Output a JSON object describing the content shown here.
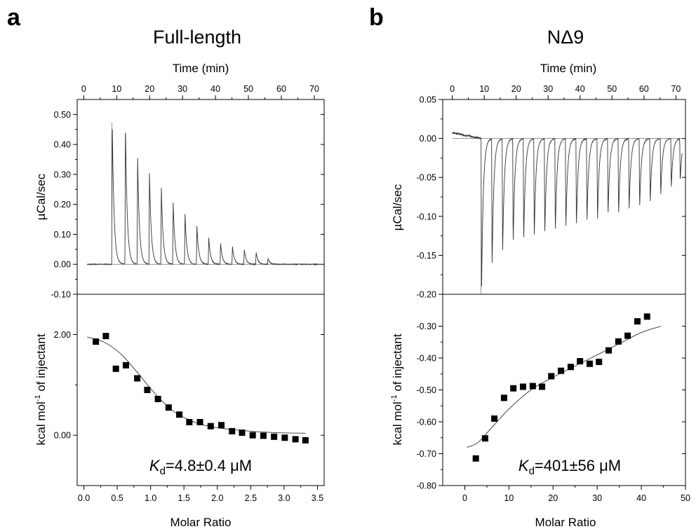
{
  "chart_data": [
    {
      "panel": "a",
      "type": "line",
      "title": "Full-length",
      "xlabel": "Time (min)",
      "ylabel": "µCal/sec",
      "xticks": [
        "0",
        "10",
        "20",
        "30",
        "40",
        "50",
        "60",
        "70"
      ],
      "yticks": [
        "0.50",
        "0.40",
        "0.30",
        "0.20",
        "0.10",
        "0.00",
        "-0.10"
      ],
      "xlim": [
        -2,
        73
      ],
      "ylim": [
        -0.1,
        0.55
      ],
      "baseline_start": 1,
      "baseline_end": 72,
      "injection_times": [
        8.5,
        12.5,
        16.2,
        19.8,
        23.4,
        27.0,
        30.6,
        34.2,
        37.8,
        41.4,
        45.0,
        48.6,
        52.2,
        55.8
      ],
      "peak_heights": [
        0.475,
        0.47,
        0.36,
        0.31,
        0.26,
        0.21,
        0.17,
        0.13,
        0.09,
        0.07,
        0.06,
        0.05,
        0.04,
        0.02
      ]
    },
    {
      "panel": "a",
      "type": "scatter",
      "xlabel": "Molar Ratio",
      "ylabel": "kcal mol-1 of injectant",
      "ylabel_main": "kcal mol",
      "ylabel_sup": "-1",
      "ylabel_rest": " of injectant",
      "xticks": [
        "0.0",
        "0.5",
        "1.0",
        "1.5",
        "2.0",
        "2.5",
        "3.0",
        "3.5"
      ],
      "yticks": [
        "2.00",
        "0.00"
      ],
      "xlim": [
        -0.1,
        3.6
      ],
      "ylim": [
        -1.0,
        2.8
      ],
      "points": [
        {
          "x": 0.18,
          "y": 1.86
        },
        {
          "x": 0.33,
          "y": 1.97
        },
        {
          "x": 0.48,
          "y": 1.32
        },
        {
          "x": 0.63,
          "y": 1.39
        },
        {
          "x": 0.8,
          "y": 1.13
        },
        {
          "x": 0.95,
          "y": 0.9
        },
        {
          "x": 1.11,
          "y": 0.72
        },
        {
          "x": 1.27,
          "y": 0.55
        },
        {
          "x": 1.43,
          "y": 0.41
        },
        {
          "x": 1.58,
          "y": 0.26
        },
        {
          "x": 1.74,
          "y": 0.26
        },
        {
          "x": 1.9,
          "y": 0.18
        },
        {
          "x": 2.06,
          "y": 0.2
        },
        {
          "x": 2.22,
          "y": 0.08
        },
        {
          "x": 2.37,
          "y": 0.05
        },
        {
          "x": 2.53,
          "y": 0.0
        },
        {
          "x": 2.69,
          "y": -0.01
        },
        {
          "x": 2.85,
          "y": -0.03
        },
        {
          "x": 3.01,
          "y": -0.05
        },
        {
          "x": 3.17,
          "y": -0.08
        },
        {
          "x": 3.32,
          "y": -0.1
        }
      ],
      "fit": [
        {
          "x": 0.05,
          "y": 1.95
        },
        {
          "x": 0.3,
          "y": 1.85
        },
        {
          "x": 0.55,
          "y": 1.62
        },
        {
          "x": 0.8,
          "y": 1.25
        },
        {
          "x": 1.05,
          "y": 0.85
        },
        {
          "x": 1.3,
          "y": 0.52
        },
        {
          "x": 1.55,
          "y": 0.32
        },
        {
          "x": 1.8,
          "y": 0.2
        },
        {
          "x": 2.1,
          "y": 0.13
        },
        {
          "x": 2.5,
          "y": 0.08
        },
        {
          "x": 2.9,
          "y": 0.05
        },
        {
          "x": 3.32,
          "y": 0.04
        }
      ],
      "kd_symbol": "K",
      "kd_subscript": "d",
      "kd_value": "=4.8±0.4 μM"
    },
    {
      "panel": "b",
      "type": "line",
      "title": "NΔ9",
      "xlabel": "Time (min)",
      "ylabel": "µCal/sec",
      "xticks": [
        "0",
        "10",
        "20",
        "30",
        "40",
        "50",
        "60",
        "70"
      ],
      "yticks": [
        "0.05",
        "0.00",
        "-0.05",
        "-0.10",
        "-0.15",
        "-0.20"
      ],
      "xlim": [
        -3,
        73
      ],
      "ylim": [
        -0.2,
        0.05
      ],
      "baseline_start": 0,
      "baseline_end": 72,
      "injection_times": [
        9.0,
        12.3,
        15.6,
        18.9,
        22.2,
        25.5,
        28.8,
        32.1,
        35.4,
        38.7,
        42.0,
        45.3,
        48.6,
        51.9,
        55.2,
        58.5,
        61.8,
        65.1,
        68.4,
        71.2
      ],
      "peak_heights": [
        -0.2,
        -0.168,
        -0.15,
        -0.137,
        -0.133,
        -0.13,
        -0.125,
        -0.122,
        -0.118,
        -0.115,
        -0.11,
        -0.108,
        -0.1,
        -0.1,
        -0.095,
        -0.09,
        -0.085,
        -0.075,
        -0.065,
        -0.055
      ]
    },
    {
      "panel": "b",
      "type": "scatter",
      "xlabel": "Molar Ratio",
      "ylabel": "kcal mol-1 of injectant",
      "ylabel_main": "kcal mol",
      "ylabel_sup": "-1",
      "ylabel_rest": " of injectant",
      "xticks": [
        "0",
        "10",
        "20",
        "30",
        "40",
        "50"
      ],
      "yticks": [
        "-0.30",
        "-0.40",
        "-0.50",
        "-0.60",
        "-0.70",
        "-0.80"
      ],
      "xlim": [
        -5,
        50
      ],
      "ylim": [
        -0.8,
        -0.2
      ],
      "points": [
        {
          "x": 2.5,
          "y": -0.715
        },
        {
          "x": 4.6,
          "y": -0.652
        },
        {
          "x": 6.7,
          "y": -0.59
        },
        {
          "x": 8.9,
          "y": -0.525
        },
        {
          "x": 11.0,
          "y": -0.495
        },
        {
          "x": 13.2,
          "y": -0.49
        },
        {
          "x": 15.4,
          "y": -0.488
        },
        {
          "x": 17.5,
          "y": -0.49
        },
        {
          "x": 19.6,
          "y": -0.457
        },
        {
          "x": 21.8,
          "y": -0.44
        },
        {
          "x": 24.0,
          "y": -0.428
        },
        {
          "x": 26.1,
          "y": -0.41
        },
        {
          "x": 28.3,
          "y": -0.418
        },
        {
          "x": 30.4,
          "y": -0.412
        },
        {
          "x": 32.6,
          "y": -0.376
        },
        {
          "x": 34.8,
          "y": -0.348
        },
        {
          "x": 36.9,
          "y": -0.33
        },
        {
          "x": 39.1,
          "y": -0.285
        },
        {
          "x": 41.3,
          "y": -0.27
        }
      ],
      "fit": [
        {
          "x": 0.5,
          "y": -0.68
        },
        {
          "x": 3,
          "y": -0.665
        },
        {
          "x": 6,
          "y": -0.62
        },
        {
          "x": 10,
          "y": -0.56
        },
        {
          "x": 15,
          "y": -0.5
        },
        {
          "x": 20,
          "y": -0.46
        },
        {
          "x": 25,
          "y": -0.425
        },
        {
          "x": 30,
          "y": -0.39
        },
        {
          "x": 35,
          "y": -0.355
        },
        {
          "x": 40,
          "y": -0.32
        },
        {
          "x": 44.5,
          "y": -0.3
        }
      ],
      "kd_symbol": "K",
      "kd_subscript": "d",
      "kd_value": "=401±56 μM"
    }
  ],
  "panels": [
    {
      "letter": "a",
      "title": "Full-length",
      "top_xlabel": "Time (min)",
      "top_ylabel": "µCal/sec",
      "bottom_xlabel": "Molar Ratio"
    },
    {
      "letter": "b",
      "title": "NΔ9",
      "top_xlabel": "Time (min)",
      "top_ylabel": "µCal/sec",
      "bottom_xlabel": "Molar Ratio"
    }
  ]
}
